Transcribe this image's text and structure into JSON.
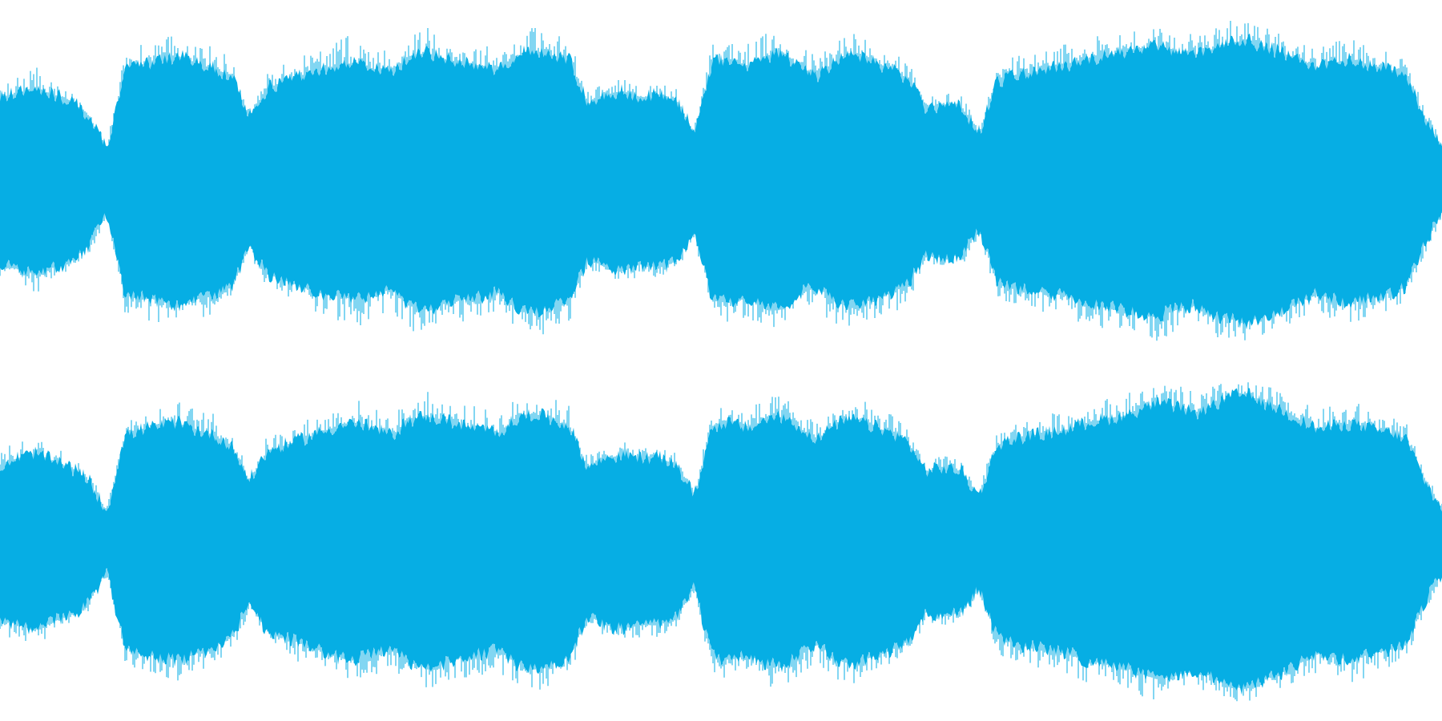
{
  "waveform": {
    "color": "#06aee4",
    "background": "#ffffff",
    "channels": [
      {
        "name": "",
        "envelope": [
          0.52,
          0.55,
          0.58,
          0.54,
          0.5,
          0.4,
          0.2,
          0.7,
          0.72,
          0.75,
          0.78,
          0.74,
          0.7,
          0.66,
          0.4,
          0.58,
          0.62,
          0.66,
          0.7,
          0.72,
          0.74,
          0.7,
          0.68,
          0.78,
          0.8,
          0.76,
          0.74,
          0.72,
          0.7,
          0.78,
          0.82,
          0.78,
          0.76,
          0.48,
          0.54,
          0.56,
          0.52,
          0.54,
          0.5,
          0.3,
          0.74,
          0.76,
          0.72,
          0.78,
          0.8,
          0.7,
          0.66,
          0.76,
          0.78,
          0.74,
          0.7,
          0.64,
          0.46,
          0.48,
          0.46,
          0.3,
          0.62,
          0.66,
          0.68,
          0.7,
          0.72,
          0.76,
          0.78,
          0.8,
          0.82,
          0.84,
          0.8,
          0.78,
          0.82,
          0.86,
          0.88,
          0.84,
          0.8,
          0.76,
          0.7,
          0.74,
          0.76,
          0.72,
          0.7,
          0.66,
          0.4,
          0.2
        ],
        "peaks": [
          0.6,
          0.66,
          0.72,
          0.62,
          0.55,
          0.45,
          0.25,
          0.82,
          0.86,
          0.9,
          0.92,
          0.88,
          0.84,
          0.78,
          0.45,
          0.68,
          0.74,
          0.8,
          0.84,
          0.9,
          0.92,
          0.86,
          0.82,
          0.94,
          0.96,
          0.9,
          0.88,
          0.86,
          0.84,
          0.92,
          0.98,
          0.94,
          0.9,
          0.56,
          0.62,
          0.64,
          0.6,
          0.62,
          0.58,
          0.35,
          0.86,
          0.9,
          0.86,
          0.92,
          0.94,
          0.84,
          0.8,
          0.92,
          0.94,
          0.88,
          0.84,
          0.76,
          0.52,
          0.56,
          0.54,
          0.35,
          0.72,
          0.78,
          0.8,
          0.84,
          0.86,
          0.9,
          0.92,
          0.94,
          0.96,
          1.0,
          0.94,
          0.92,
          0.96,
          1.0,
          1.0,
          0.96,
          0.94,
          0.9,
          0.82,
          0.88,
          0.9,
          0.86,
          0.84,
          0.76,
          0.46,
          0.25
        ]
      },
      {
        "name": "",
        "envelope": [
          0.48,
          0.52,
          0.55,
          0.5,
          0.46,
          0.38,
          0.18,
          0.66,
          0.7,
          0.72,
          0.74,
          0.7,
          0.66,
          0.6,
          0.38,
          0.56,
          0.6,
          0.64,
          0.68,
          0.72,
          0.74,
          0.7,
          0.66,
          0.76,
          0.78,
          0.76,
          0.72,
          0.7,
          0.68,
          0.76,
          0.8,
          0.76,
          0.72,
          0.46,
          0.52,
          0.54,
          0.52,
          0.52,
          0.48,
          0.28,
          0.72,
          0.74,
          0.7,
          0.76,
          0.78,
          0.7,
          0.64,
          0.74,
          0.76,
          0.72,
          0.68,
          0.62,
          0.44,
          0.46,
          0.44,
          0.28,
          0.6,
          0.64,
          0.66,
          0.68,
          0.7,
          0.74,
          0.76,
          0.78,
          0.82,
          0.86,
          0.84,
          0.8,
          0.84,
          0.9,
          0.92,
          0.86,
          0.82,
          0.76,
          0.7,
          0.72,
          0.74,
          0.7,
          0.68,
          0.64,
          0.38,
          0.2
        ],
        "peaks": [
          0.58,
          0.62,
          0.66,
          0.6,
          0.55,
          0.44,
          0.22,
          0.78,
          0.82,
          0.86,
          0.88,
          0.84,
          0.8,
          0.72,
          0.44,
          0.66,
          0.72,
          0.76,
          0.8,
          0.86,
          0.9,
          0.84,
          0.78,
          0.92,
          0.94,
          0.9,
          0.86,
          0.84,
          0.82,
          0.9,
          0.94,
          0.9,
          0.86,
          0.54,
          0.6,
          0.62,
          0.6,
          0.6,
          0.56,
          0.32,
          0.84,
          0.88,
          0.84,
          0.9,
          0.92,
          0.82,
          0.76,
          0.88,
          0.9,
          0.86,
          0.8,
          0.72,
          0.5,
          0.54,
          0.52,
          0.32,
          0.7,
          0.76,
          0.78,
          0.8,
          0.84,
          0.88,
          0.9,
          0.92,
          0.96,
          1.0,
          0.98,
          0.94,
          0.98,
          1.0,
          1.0,
          0.98,
          0.94,
          0.88,
          0.82,
          0.86,
          0.88,
          0.84,
          0.8,
          0.74,
          0.44,
          0.24
        ]
      }
    ]
  }
}
